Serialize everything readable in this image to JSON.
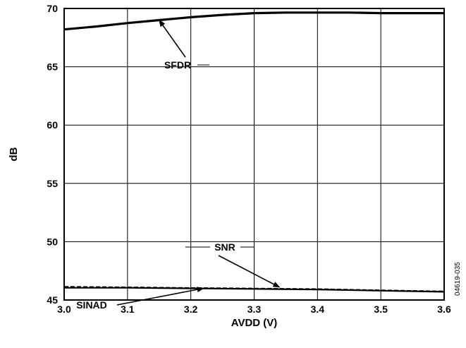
{
  "chart_data": {
    "type": "line",
    "title": "",
    "xlabel": "AVDD (V)",
    "ylabel": "dB",
    "xlim": [
      3.0,
      3.6
    ],
    "ylim": [
      45,
      70
    ],
    "x_ticks": [
      "3.0",
      "3.1",
      "3.2",
      "3.3",
      "3.4",
      "3.5",
      "3.6"
    ],
    "y_ticks": [
      "45",
      "50",
      "55",
      "60",
      "65",
      "70"
    ],
    "grid": true,
    "series": [
      {
        "name": "SFDR",
        "style": "solid-thick",
        "x": [
          3.0,
          3.05,
          3.1,
          3.15,
          3.2,
          3.25,
          3.3,
          3.35,
          3.4,
          3.45,
          3.5,
          3.55,
          3.6
        ],
        "y": [
          68.2,
          68.45,
          68.75,
          69.0,
          69.25,
          69.45,
          69.6,
          69.65,
          69.65,
          69.65,
          69.6,
          69.6,
          69.6
        ]
      },
      {
        "name": "SNR",
        "style": "dashed",
        "x": [
          3.0,
          3.1,
          3.2,
          3.3,
          3.4,
          3.5,
          3.6
        ],
        "y": [
          46.15,
          46.1,
          46.05,
          46.0,
          45.95,
          45.85,
          45.75
        ]
      },
      {
        "name": "SINAD",
        "style": "solid",
        "x": [
          3.0,
          3.1,
          3.2,
          3.3,
          3.4,
          3.5,
          3.6
        ],
        "y": [
          46.05,
          46.05,
          46.0,
          45.95,
          45.9,
          45.8,
          45.7
        ]
      }
    ],
    "annotations": [
      {
        "text": "SFDR",
        "arrow_to": [
          3.15,
          69.0
        ]
      },
      {
        "text": "SNR",
        "arrow_to": [
          3.34,
          46.1
        ]
      },
      {
        "text": "SINAD",
        "arrow_to": [
          3.22,
          46.0
        ]
      }
    ],
    "figure_id": "04619-035",
    "colors": {
      "line": "#000000",
      "grid": "#000000",
      "background": "#ffffff"
    }
  }
}
